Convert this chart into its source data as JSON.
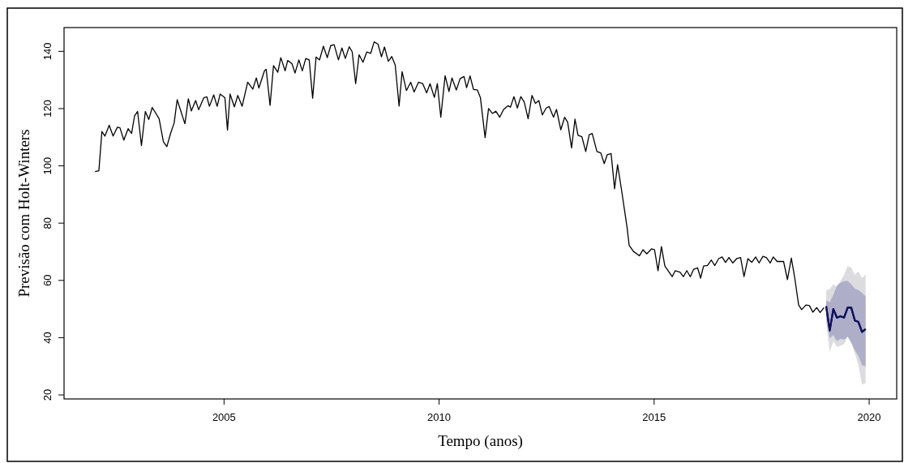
{
  "chart_data": {
    "type": "line",
    "xlabel": "Tempo (anos)",
    "ylabel": "Previsão com Holt-Winters",
    "xlim": [
      2001.28,
      2020.64
    ],
    "xticks": [
      2005,
      2010,
      2015,
      2020
    ],
    "ylim": [
      18.6,
      148.3
    ],
    "yticks": [
      20,
      40,
      60,
      80,
      100,
      120,
      140
    ],
    "series": [
      {
        "color": "#10105e",
        "x": [
          2019,
          2019.083,
          2019.167,
          2019.25,
          2019.333,
          2019.417,
          2019.5,
          2019.583,
          2019.667,
          2019.75,
          2019.833,
          2019.917
        ],
        "values": [
          51,
          42.5,
          50,
          47,
          47.5,
          47,
          50.5,
          50.5,
          46,
          45.5,
          42,
          43
        ],
        "upper": [
          56.6,
          57,
          58.7,
          57.7,
          59.8,
          61.9,
          65,
          64.5,
          61.9,
          63.1,
          60.8,
          62.1
        ],
        "lower": [
          45,
          35,
          38.8,
          36.7,
          37.2,
          37.8,
          40.4,
          38.3,
          34.6,
          30.4,
          23.6,
          24.1
        ]
      },
      {
        "color": "#000000",
        "x": [
          2002,
          2002.09,
          2002.16,
          2002.23,
          2002.33,
          2002.42,
          2002.52,
          2002.58,
          2002.67,
          2002.77,
          2002.85,
          2002.92,
          2002.99,
          2003.08,
          2003.17,
          2003.25,
          2003.33,
          2003.49,
          2003.59,
          2003.67,
          2003.76,
          2003.84,
          2003.91,
          2004.09,
          2004.17,
          2004.24,
          2004.34,
          2004.41,
          2004.53,
          2004.6,
          2004.66,
          2004.76,
          2004.84,
          2004.91,
          2005.02,
          2005.08,
          2005.14,
          2005.24,
          2005.32,
          2005.42,
          2005.55,
          2005.67,
          2005.75,
          2005.81,
          2005.94,
          2005.98,
          2006.07,
          2006.15,
          2006.25,
          2006.32,
          2006.42,
          2006.48,
          2006.58,
          2006.65,
          2006.74,
          2006.82,
          2006.9,
          2006.98,
          2007.06,
          2007.14,
          2007.22,
          2007.31,
          2007.4,
          2007.48,
          2007.56,
          2007.66,
          2007.74,
          2007.82,
          2007.91,
          2007.98,
          2008.06,
          2008.14,
          2008.23,
          2008.32,
          2008.41,
          2008.49,
          2008.58,
          2008.66,
          2008.73,
          2008.82,
          2008.9,
          2008.98,
          2009.07,
          2009.14,
          2009.24,
          2009.34,
          2009.42,
          2009.52,
          2009.62,
          2009.71,
          2009.79,
          2009.89,
          2009.96,
          2010.04,
          2010.14,
          2010.23,
          2010.3,
          2010.4,
          2010.49,
          2010.58,
          2010.64,
          2010.72,
          2010.8,
          2010.89,
          2010.96,
          2011.07,
          2011.15,
          2011.24,
          2011.32,
          2011.41,
          2011.5,
          2011.6,
          2011.66,
          2011.74,
          2011.82,
          2011.9,
          2011.98,
          2012.07,
          2012.16,
          2012.24,
          2012.32,
          2012.4,
          2012.49,
          2012.56,
          2012.66,
          2012.73,
          2012.83,
          2012.92,
          2012.99,
          2013.08,
          2013.16,
          2013.23,
          2013.32,
          2013.41,
          2013.49,
          2013.56,
          2013.67,
          2013.76,
          2013.84,
          2013.91,
          2014,
          2014.08,
          2014.15,
          2014.24,
          2014.37,
          2014.42,
          2014.52,
          2014.66,
          2014.74,
          2014.83,
          2014.94,
          2015.01,
          2015.09,
          2015.17,
          2015.25,
          2015.42,
          2015.49,
          2015.6,
          2015.68,
          2015.76,
          2015.84,
          2015.92,
          2016.01,
          2016.08,
          2016.15,
          2016.24,
          2016.33,
          2016.41,
          2016.5,
          2016.58,
          2016.66,
          2016.74,
          2016.83,
          2016.92,
          2017.01,
          2017.09,
          2017.18,
          2017.27,
          2017.36,
          2017.44,
          2017.53,
          2017.61,
          2017.7,
          2017.77,
          2017.86,
          2018.01,
          2018.1,
          2018.19,
          2018.27,
          2018.36,
          2018.43,
          2018.53,
          2018.61,
          2018.69,
          2018.78,
          2018.86,
          2018.95
        ],
        "values": [
          98,
          98.3,
          112,
          110.4,
          114.2,
          110.4,
          113.5,
          113.3,
          109,
          113,
          111.3,
          117.5,
          119,
          107.1,
          119,
          116.2,
          120.4,
          116.5,
          108.4,
          106.7,
          111.5,
          115,
          123.1,
          114.7,
          123.4,
          119.2,
          122.8,
          119.6,
          123.8,
          124.1,
          120.8,
          124.8,
          120.8,
          125.1,
          123.8,
          112.5,
          125.1,
          120.6,
          124.6,
          120.8,
          129.2,
          126.8,
          130.7,
          127.2,
          133.2,
          133.7,
          121.1,
          135,
          132.7,
          137.8,
          133.2,
          136.8,
          135.7,
          132.4,
          137,
          133.2,
          137.5,
          137,
          123.6,
          138,
          137,
          141.8,
          137.8,
          142,
          142.3,
          137,
          141.2,
          137.5,
          141.6,
          139.8,
          128.7,
          138.8,
          136.2,
          139.8,
          139.3,
          143.3,
          142.5,
          138.1,
          141.5,
          136.5,
          138.2,
          135.2,
          120.9,
          132.9,
          126.3,
          129.2,
          125.8,
          129.2,
          128.7,
          125.5,
          128.7,
          123.9,
          128.7,
          117,
          131.5,
          126,
          130.7,
          126.5,
          130.5,
          131.2,
          127.3,
          131.4,
          126.7,
          126.5,
          123.9,
          109.9,
          120,
          118.3,
          119.1,
          117,
          119.7,
          121,
          120.5,
          124.2,
          120.2,
          124.2,
          122.3,
          116.5,
          124.6,
          121.8,
          122.8,
          117.8,
          120.2,
          120.7,
          117,
          119.7,
          112.6,
          117,
          115.2,
          106.3,
          116.3,
          110.7,
          110.2,
          105,
          110.9,
          111.3,
          105,
          104.5,
          100.8,
          103.9,
          104.3,
          92,
          100.4,
          91.8,
          78.6,
          72.2,
          70.1,
          68.6,
          70.7,
          69.3,
          71,
          70.7,
          63.4,
          71.8,
          65,
          61.3,
          63.4,
          62.9,
          61.3,
          63.4,
          61.3,
          63.9,
          64.4,
          60.8,
          65,
          65.2,
          67.1,
          65.2,
          67.6,
          68.2,
          66.3,
          68,
          66.1,
          67.6,
          68,
          61.3,
          67.6,
          66.3,
          68.2,
          66.1,
          68.4,
          68,
          66.1,
          68.2,
          66.6,
          66.6,
          60.3,
          67.8,
          60.8,
          51.4,
          49.8,
          51.4,
          51.2,
          48.9,
          50.5,
          48.8,
          50.5
        ]
      },
      {
        "color": "#10105e",
        "x": [
          2019,
          2019.083,
          2019.167,
          2019.25,
          2019.333,
          2019.417,
          2019.5,
          2019.583,
          2019.667,
          2019.75,
          2019.833,
          2019.917
        ],
        "values": [
          51,
          42.5,
          50,
          47,
          47.5,
          47,
          50.5,
          50.5,
          46,
          45.5,
          42,
          43
        ],
        "lower": [
          47,
          39.8,
          40.9,
          38.8,
          39.6,
          39.3,
          40.4,
          38.3,
          35.6,
          33.6,
          30.4,
          29.9
        ],
        "upper": [
          53,
          52.4,
          55,
          58.2,
          59.2,
          59.8,
          59.8,
          58.7,
          57.1,
          56.6,
          55.6,
          54.5
        ]
      }
    ]
  }
}
